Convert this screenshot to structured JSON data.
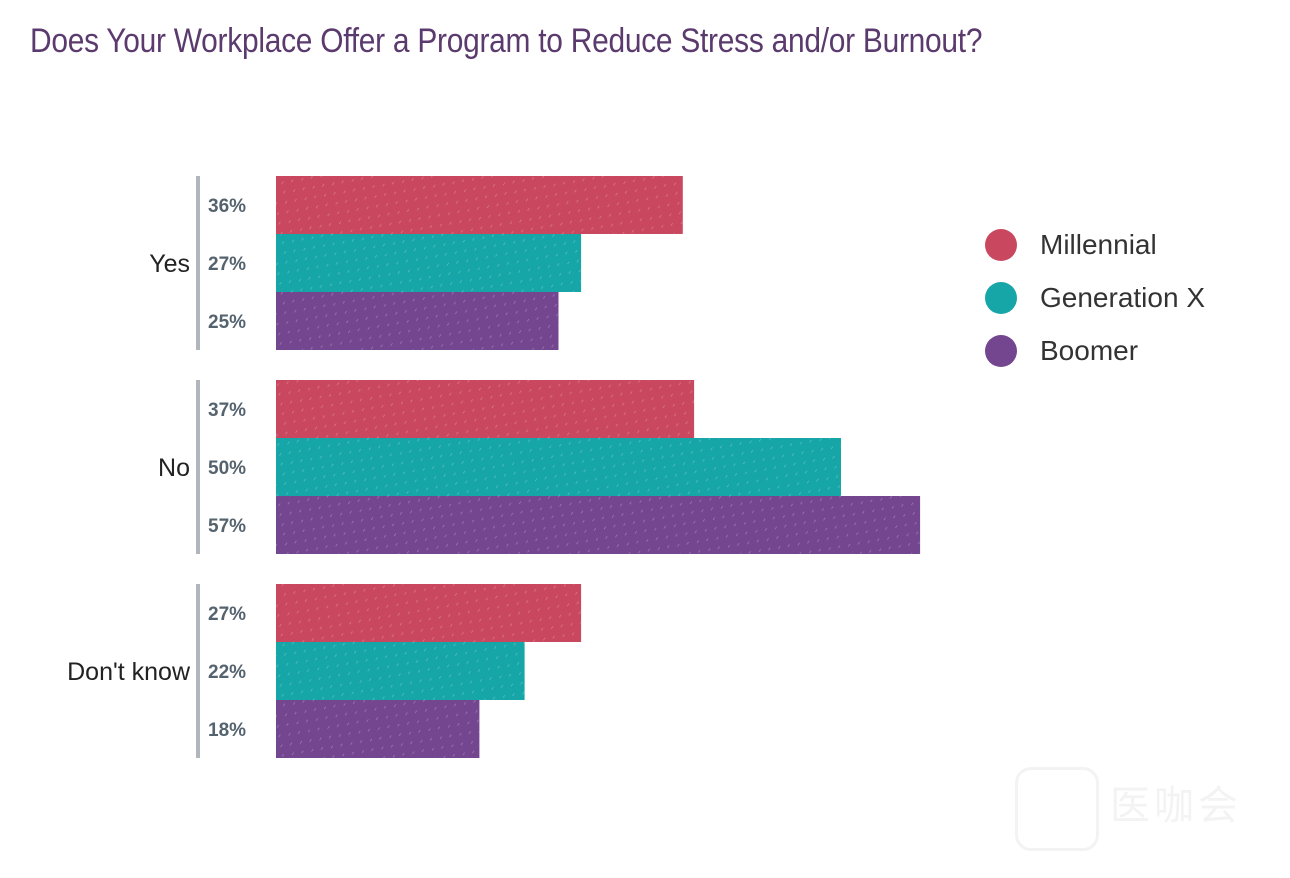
{
  "title": "Does Your Workplace Offer a Program to Reduce Stress and/or Burnout?",
  "colors": {
    "Millennial": "#c9485f",
    "Generation X": "#17a6a7",
    "Boomer": "#744690",
    "axis": "#b0b6bb",
    "value_label": "#55636e",
    "title": "#5b3a6e"
  },
  "watermark": {
    "text": "医咖会",
    "logo": "yikahui-logo"
  },
  "chart_data": {
    "type": "bar",
    "orientation": "horizontal",
    "title": "Does Your Workplace Offer a Program to Reduce Stress and/or Burnout?",
    "categories": [
      "Yes",
      "No",
      "Don't know"
    ],
    "series": [
      {
        "name": "Millennial",
        "values": [
          36,
          37,
          27
        ],
        "labels": [
          "36%",
          "37%",
          "27%"
        ]
      },
      {
        "name": "Generation X",
        "values": [
          27,
          50,
          22
        ],
        "labels": [
          "27%",
          "50%",
          "22%"
        ]
      },
      {
        "name": "Boomer",
        "values": [
          25,
          57,
          18
        ],
        "labels": [
          "25%",
          "57%",
          "18%"
        ]
      }
    ],
    "value_unit": "%",
    "xlim": [
      0,
      57
    ],
    "grid": false,
    "legend_position": "right"
  }
}
